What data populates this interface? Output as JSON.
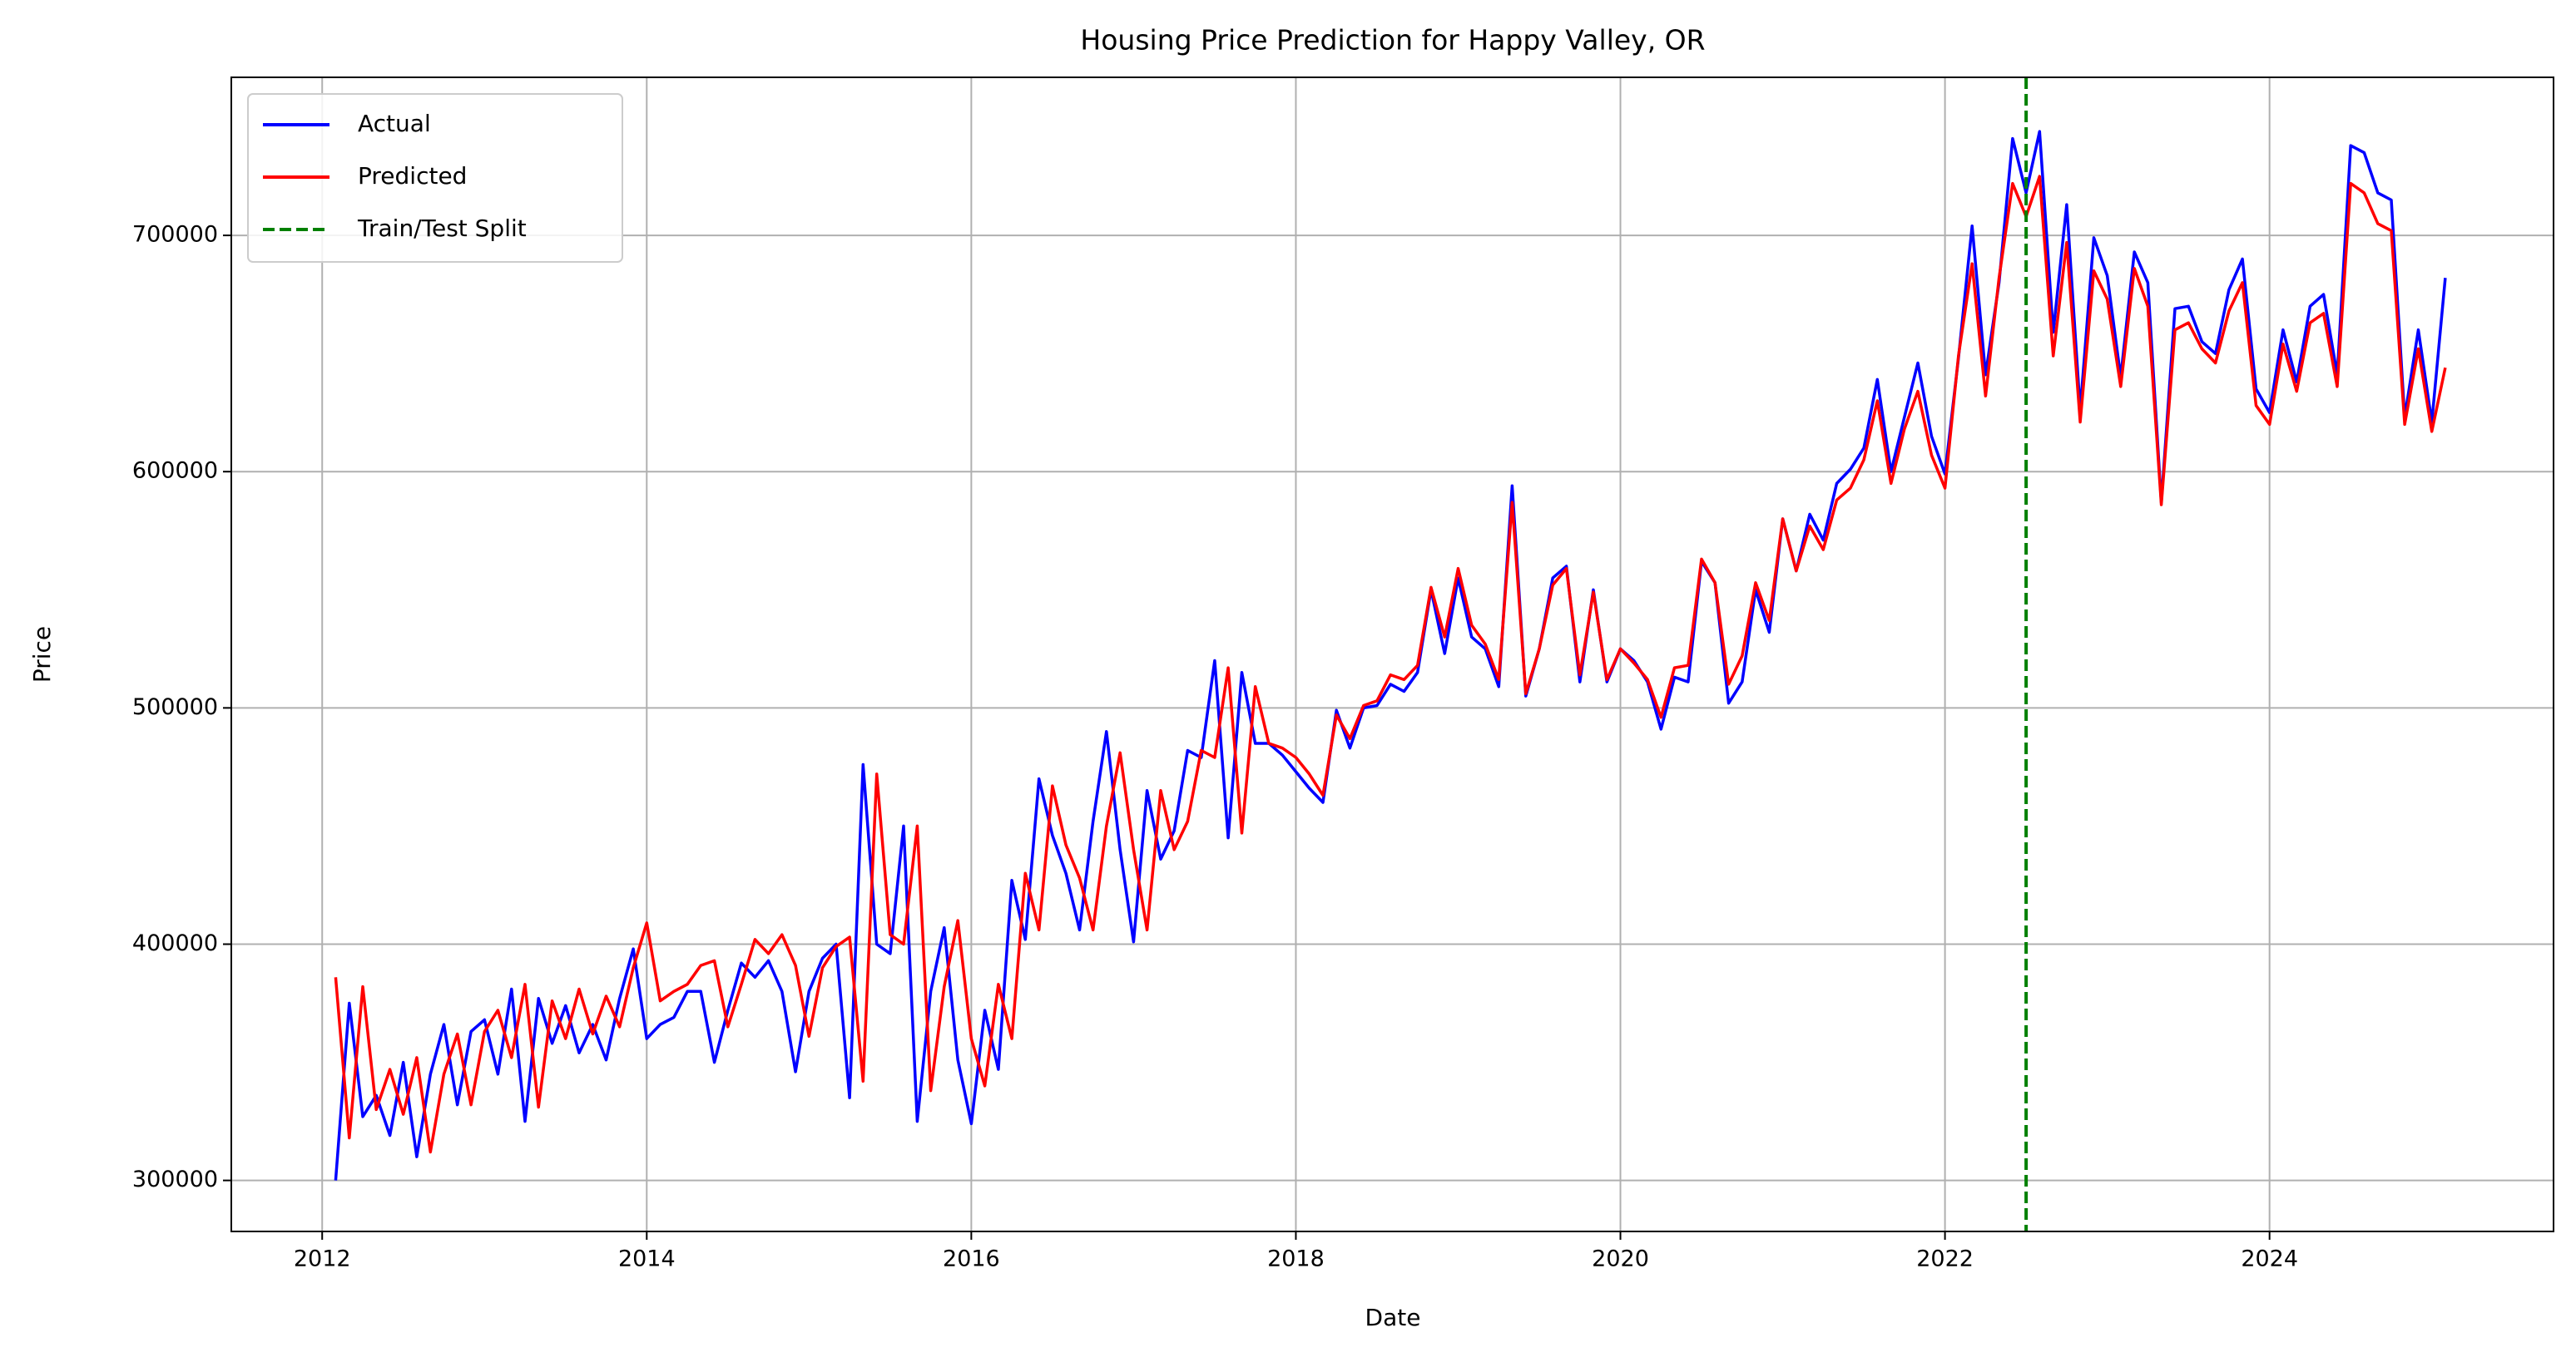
{
  "chart_data": {
    "type": "line",
    "title": "Housing Price Prediction for Happy Valley, OR",
    "x_label": "Date",
    "y_label": "Price",
    "x": [
      2012.083,
      2012.167,
      2012.25,
      2012.333,
      2012.417,
      2012.5,
      2012.583,
      2012.667,
      2012.75,
      2012.833,
      2012.917,
      2013.0,
      2013.083,
      2013.167,
      2013.25,
      2013.333,
      2013.417,
      2013.5,
      2013.583,
      2013.667,
      2013.75,
      2013.833,
      2013.917,
      2014.0,
      2014.083,
      2014.167,
      2014.25,
      2014.333,
      2014.417,
      2014.5,
      2014.583,
      2014.667,
      2014.75,
      2014.833,
      2014.917,
      2015.0,
      2015.083,
      2015.167,
      2015.25,
      2015.333,
      2015.417,
      2015.5,
      2015.583,
      2015.667,
      2015.75,
      2015.833,
      2015.917,
      2016.0,
      2016.083,
      2016.167,
      2016.25,
      2016.333,
      2016.417,
      2016.5,
      2016.583,
      2016.667,
      2016.75,
      2016.833,
      2016.917,
      2017.0,
      2017.083,
      2017.167,
      2017.25,
      2017.333,
      2017.417,
      2017.5,
      2017.583,
      2017.667,
      2017.75,
      2017.833,
      2017.917,
      2018.0,
      2018.083,
      2018.167,
      2018.25,
      2018.333,
      2018.417,
      2018.5,
      2018.583,
      2018.667,
      2018.75,
      2018.833,
      2018.917,
      2019.0,
      2019.083,
      2019.167,
      2019.25,
      2019.333,
      2019.417,
      2019.5,
      2019.583,
      2019.667,
      2019.75,
      2019.833,
      2019.917,
      2020.0,
      2020.083,
      2020.167,
      2020.25,
      2020.333,
      2020.417,
      2020.5,
      2020.583,
      2020.667,
      2020.75,
      2020.833,
      2020.917,
      2021.0,
      2021.083,
      2021.167,
      2021.25,
      2021.333,
      2021.417,
      2021.5,
      2021.583,
      2021.667,
      2021.75,
      2021.833,
      2021.917,
      2022.0,
      2022.083,
      2022.167,
      2022.25,
      2022.333,
      2022.417,
      2022.5,
      2022.583,
      2022.667,
      2022.75,
      2022.833,
      2022.917,
      2023.0,
      2023.083,
      2023.167,
      2023.25,
      2023.333,
      2023.417,
      2023.5,
      2023.583,
      2023.667,
      2023.75,
      2023.833,
      2023.917,
      2024.0,
      2024.083,
      2024.167,
      2024.25,
      2024.333,
      2024.417,
      2024.5,
      2024.583,
      2024.667,
      2024.75,
      2024.833,
      2024.917,
      2025.0,
      2025.083
    ],
    "series": [
      {
        "name": "Actual",
        "color": "#0000ff",
        "values": [
          300000,
          375000,
          327000,
          336000,
          319000,
          350000,
          310000,
          345000,
          366000,
          332000,
          363000,
          368000,
          345000,
          381000,
          325000,
          377000,
          358000,
          374000,
          354000,
          366000,
          351000,
          377000,
          398000,
          360000,
          366000,
          369000,
          380000,
          380000,
          350000,
          372000,
          392000,
          386000,
          393000,
          380000,
          346000,
          380000,
          394000,
          400000,
          335000,
          476000,
          400000,
          396000,
          450000,
          325000,
          380000,
          407000,
          351000,
          324000,
          372000,
          347000,
          427000,
          402000,
          470000,
          446000,
          430000,
          406000,
          452000,
          490000,
          440000,
          401000,
          465000,
          436000,
          448000,
          482000,
          479000,
          520000,
          445000,
          515000,
          485000,
          485000,
          480000,
          473000,
          466000,
          460000,
          499000,
          483000,
          500000,
          501000,
          510000,
          507000,
          515000,
          550000,
          523000,
          555000,
          530000,
          525000,
          509000,
          594000,
          505000,
          525000,
          555000,
          560000,
          511000,
          550000,
          511000,
          525000,
          520000,
          511000,
          491000,
          513000,
          511000,
          562000,
          553000,
          502000,
          511000,
          550000,
          532000,
          580000,
          558000,
          582000,
          571000,
          595000,
          601000,
          610000,
          639000,
          600000,
          623000,
          646000,
          615000,
          599000,
          648000,
          704000,
          641000,
          680000,
          741000,
          718000,
          744000,
          659000,
          713000,
          626000,
          699000,
          683000,
          640000,
          693000,
          680000,
          587000,
          669000,
          670000,
          655000,
          650000,
          677000,
          690000,
          635000,
          625000,
          660000,
          638000,
          670000,
          675000,
          641000,
          738000,
          735000,
          718000,
          715000,
          623000,
          660000,
          621000,
          682000
        ]
      },
      {
        "name": "Predicted",
        "color": "#ff0000",
        "values": [
          386000,
          318000,
          382000,
          330000,
          347000,
          328000,
          352000,
          312000,
          345000,
          362000,
          332000,
          363000,
          372000,
          352000,
          383000,
          331000,
          376000,
          360000,
          381000,
          362000,
          378000,
          365000,
          390000,
          409000,
          376000,
          380000,
          383000,
          391000,
          393000,
          365000,
          383000,
          402000,
          396000,
          404000,
          391000,
          361000,
          390000,
          399000,
          403000,
          342000,
          472000,
          404000,
          400000,
          450000,
          338000,
          382000,
          410000,
          360000,
          340000,
          383000,
          360000,
          430000,
          406000,
          467000,
          442000,
          428000,
          406000,
          450000,
          481000,
          440000,
          406000,
          465000,
          440000,
          452000,
          482000,
          479000,
          517000,
          447000,
          509000,
          485000,
          483000,
          479000,
          472000,
          463000,
          497000,
          487000,
          501000,
          503000,
          514000,
          512000,
          518000,
          551000,
          530000,
          559000,
          535000,
          527000,
          512000,
          587000,
          506000,
          525000,
          552000,
          559000,
          514000,
          549000,
          512000,
          525000,
          519000,
          512000,
          496000,
          517000,
          518000,
          563000,
          553000,
          510000,
          522000,
          553000,
          537000,
          580000,
          558000,
          577000,
          567000,
          588000,
          593000,
          605000,
          630000,
          595000,
          618000,
          634000,
          607000,
          593000,
          649000,
          688000,
          632000,
          682000,
          722000,
          708000,
          725000,
          649000,
          697000,
          621000,
          685000,
          673000,
          636000,
          686000,
          670000,
          586000,
          660000,
          663000,
          652000,
          646000,
          668000,
          680000,
          628000,
          620000,
          654000,
          634000,
          663000,
          667000,
          636000,
          722000,
          718000,
          705000,
          702000,
          620000,
          652000,
          617000,
          644000
        ]
      }
    ],
    "vlines": [
      {
        "name": "Train/Test Split",
        "x": 2022.5,
        "color": "#008000",
        "dashed": true
      }
    ],
    "xlim": [
      2011.44,
      2025.75
    ],
    "xticks": [
      2012,
      2014,
      2016,
      2018,
      2020,
      2022,
      2024
    ],
    "ylim": [
      278400,
      766900
    ],
    "yticks": [
      300000,
      400000,
      500000,
      600000,
      700000
    ],
    "grid": true,
    "legend": "upper left"
  }
}
